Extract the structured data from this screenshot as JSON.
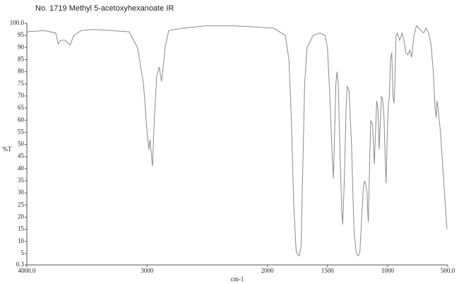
{
  "chart_data": {
    "type": "line",
    "title": "No. 1719 Methyl 5-acetoxyhexanoate IR",
    "xlabel": "cm-1",
    "ylabel": "%T",
    "color": "#8a8a8a",
    "xlim": [
      4000,
      500
    ],
    "ylim": [
      0.3,
      100
    ],
    "xticks": [
      {
        "value": 4000,
        "label": "4000.0"
      },
      3000,
      2000,
      1500,
      1000,
      {
        "value": 500,
        "label": "500.0"
      }
    ],
    "yticks": [
      0.3,
      5,
      10,
      15,
      20,
      25,
      30,
      35,
      40,
      45,
      50,
      55,
      60,
      65,
      70,
      75,
      80,
      85,
      90,
      95,
      {
        "value": 100,
        "label": "100.0"
      }
    ],
    "x": [
      4000,
      3850,
      3760,
      3740,
      3720,
      3680,
      3640,
      3610,
      3550,
      3450,
      3300,
      3150,
      3080,
      3030,
      3000,
      2985,
      2975,
      2955,
      2940,
      2920,
      2900,
      2880,
      2870,
      2850,
      2820,
      2700,
      2500,
      2300,
      2100,
      1950,
      1850,
      1820,
      1800,
      1780,
      1760,
      1745,
      1735,
      1720,
      1705,
      1690,
      1670,
      1620,
      1560,
      1520,
      1500,
      1480,
      1460,
      1450,
      1440,
      1430,
      1420,
      1410,
      1395,
      1380,
      1373,
      1360,
      1345,
      1335,
      1320,
      1300,
      1280,
      1260,
      1243,
      1230,
      1215,
      1200,
      1190,
      1180,
      1170,
      1165,
      1160,
      1150,
      1140,
      1125,
      1110,
      1100,
      1090,
      1080,
      1070,
      1060,
      1050,
      1040,
      1030,
      1020,
      1012,
      1005,
      995,
      985,
      975,
      965,
      955,
      947,
      940,
      930,
      920,
      900,
      880,
      860,
      850,
      830,
      815,
      800,
      780,
      760,
      740,
      700,
      680,
      660,
      640,
      620,
      605,
      595,
      590,
      580,
      560,
      540,
      520,
      505
    ],
    "values": [
      96.5,
      97,
      96,
      91.5,
      93,
      93,
      91,
      95,
      97,
      97.5,
      97,
      96.5,
      90,
      75,
      55,
      48,
      52,
      41,
      60,
      78,
      82,
      76,
      80,
      90,
      97,
      98,
      99,
      99,
      98.5,
      98,
      95,
      85,
      60,
      25,
      6,
      4.5,
      4,
      8,
      40,
      75,
      90,
      95,
      96,
      95,
      90,
      70,
      45,
      36,
      55,
      75,
      80,
      75,
      45,
      22,
      17,
      35,
      65,
      74,
      72,
      50,
      15,
      5,
      4,
      6,
      20,
      33,
      35,
      33,
      30,
      22,
      18,
      40,
      60,
      58,
      42,
      55,
      68,
      65,
      48,
      60,
      70,
      68,
      62,
      44,
      34,
      50,
      65,
      70,
      85,
      88,
      70,
      67,
      75,
      95,
      96,
      93,
      96,
      92,
      88,
      87,
      89,
      86,
      95,
      99,
      98,
      96,
      98,
      96,
      92,
      80,
      65,
      61,
      68,
      65,
      55,
      40,
      25,
      15
    ]
  }
}
